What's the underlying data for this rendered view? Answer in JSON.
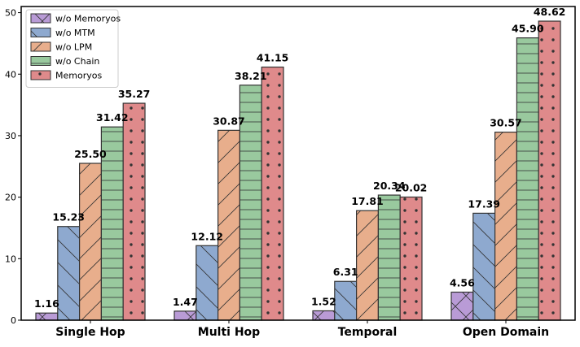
{
  "chart_data": {
    "type": "bar",
    "title": "",
    "xlabel": "",
    "ylabel": "",
    "ylim": [
      0,
      51
    ],
    "yticks": [
      0,
      10,
      20,
      30,
      40,
      50
    ],
    "grid": false,
    "legend_position": "top-left",
    "categories": [
      "Single Hop",
      "Multi Hop",
      "Temporal",
      "Open Domain"
    ],
    "series": [
      {
        "name": "w/o Memoryos",
        "values": [
          1.16,
          1.47,
          1.52,
          4.56
        ],
        "labels": [
          "1.16",
          "1.47",
          "1.52",
          "4.56"
        ],
        "color": "#b99bd6",
        "pattern": "crosshatch"
      },
      {
        "name": "w/o MTM",
        "values": [
          15.23,
          12.12,
          6.31,
          17.39
        ],
        "labels": [
          "15.23",
          "12.12",
          "6.31",
          "17.39"
        ],
        "color": "#8ea9cf",
        "pattern": "grid"
      },
      {
        "name": "w/o LPM",
        "values": [
          25.5,
          30.87,
          17.81,
          30.57
        ],
        "labels": [
          "25.50",
          "30.87",
          "17.81",
          "30.57"
        ],
        "color": "#e8ae8c",
        "pattern": "diagonal"
      },
      {
        "name": "w/o Chain",
        "values": [
          31.42,
          38.21,
          20.34,
          45.9
        ],
        "labels": [
          "31.42",
          "38.21",
          "20.34",
          "45.90"
        ],
        "color": "#99c99e",
        "pattern": "horizontal"
      },
      {
        "name": "Memoryos",
        "values": [
          35.27,
          41.15,
          20.02,
          48.62
        ],
        "labels": [
          "35.27",
          "41.15",
          "20.02",
          "48.62"
        ],
        "color": "#df8a8b",
        "pattern": "dots"
      }
    ]
  }
}
